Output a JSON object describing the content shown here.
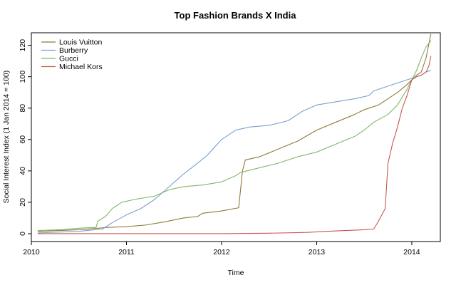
{
  "chart_data": {
    "type": "line",
    "title": "Top Fashion Brands X India",
    "xlabel": "Time",
    "ylabel": "Social Interest Index (1 Jan 2014 = 100)",
    "xlim": [
      2010.0,
      2014.3
    ],
    "ylim": [
      -5,
      128
    ],
    "x_ticks": [
      2010,
      2011,
      2012,
      2013,
      2014
    ],
    "x_tick_labels": [
      "2010",
      "2011",
      "2012",
      "2013",
      "2014"
    ],
    "y_ticks": [
      0,
      20,
      40,
      60,
      80,
      100,
      120
    ],
    "y_tick_labels": [
      "0",
      "20",
      "40",
      "60",
      "80",
      "100",
      "120"
    ],
    "legend_position": "top-left",
    "series": [
      {
        "name": "Louis Vuitton",
        "color": "#8c7a3a",
        "points": [
          [
            2010.07,
            1.5
          ],
          [
            2010.5,
            2.5
          ],
          [
            2010.8,
            4
          ],
          [
            2011.0,
            4.5
          ],
          [
            2011.2,
            5.5
          ],
          [
            2011.4,
            7.5
          ],
          [
            2011.6,
            10
          ],
          [
            2011.75,
            11
          ],
          [
            2011.8,
            13
          ],
          [
            2012.0,
            14.5
          ],
          [
            2012.18,
            16.5
          ],
          [
            2012.22,
            40
          ],
          [
            2012.25,
            47
          ],
          [
            2012.4,
            49
          ],
          [
            2012.6,
            54
          ],
          [
            2012.8,
            59
          ],
          [
            2013.0,
            66
          ],
          [
            2013.2,
            71
          ],
          [
            2013.4,
            76
          ],
          [
            2013.5,
            79
          ],
          [
            2013.65,
            82
          ],
          [
            2013.75,
            86
          ],
          [
            2013.85,
            90
          ],
          [
            2013.95,
            95
          ],
          [
            2014.05,
            101
          ],
          [
            2014.1,
            103
          ],
          [
            2014.15,
            112
          ],
          [
            2014.2,
            127
          ]
        ]
      },
      {
        "name": "Burberry",
        "color": "#7a9fd0",
        "points": [
          [
            2010.07,
            0.5
          ],
          [
            2010.5,
            1.5
          ],
          [
            2010.75,
            3
          ],
          [
            2010.85,
            7
          ],
          [
            2011.0,
            12
          ],
          [
            2011.15,
            16
          ],
          [
            2011.3,
            22
          ],
          [
            2011.45,
            30
          ],
          [
            2011.6,
            38
          ],
          [
            2011.75,
            45
          ],
          [
            2011.85,
            50
          ],
          [
            2012.0,
            60
          ],
          [
            2012.15,
            66
          ],
          [
            2012.3,
            68
          ],
          [
            2012.5,
            69
          ],
          [
            2012.7,
            72
          ],
          [
            2012.85,
            78
          ],
          [
            2013.0,
            82
          ],
          [
            2013.2,
            84
          ],
          [
            2013.4,
            86
          ],
          [
            2013.55,
            88
          ],
          [
            2013.6,
            91
          ],
          [
            2013.75,
            94
          ],
          [
            2013.9,
            97
          ],
          [
            2014.0,
            99
          ],
          [
            2014.1,
            101
          ],
          [
            2014.15,
            103
          ],
          [
            2014.2,
            104
          ]
        ]
      },
      {
        "name": "Gucci",
        "color": "#7fb86a",
        "points": [
          [
            2010.07,
            2
          ],
          [
            2010.3,
            2.5
          ],
          [
            2010.5,
            3.5
          ],
          [
            2010.68,
            4
          ],
          [
            2010.7,
            8
          ],
          [
            2010.78,
            11
          ],
          [
            2010.85,
            16
          ],
          [
            2010.95,
            20
          ],
          [
            2011.1,
            22
          ],
          [
            2011.3,
            24
          ],
          [
            2011.45,
            28
          ],
          [
            2011.6,
            30
          ],
          [
            2011.8,
            31
          ],
          [
            2012.0,
            33
          ],
          [
            2012.15,
            37
          ],
          [
            2012.2,
            39
          ],
          [
            2012.4,
            42
          ],
          [
            2012.6,
            45
          ],
          [
            2012.8,
            49
          ],
          [
            2013.0,
            52
          ],
          [
            2013.2,
            57
          ],
          [
            2013.4,
            62
          ],
          [
            2013.5,
            66
          ],
          [
            2013.6,
            71
          ],
          [
            2013.75,
            76
          ],
          [
            2013.85,
            82
          ],
          [
            2013.95,
            92
          ],
          [
            2014.05,
            104
          ],
          [
            2014.1,
            112
          ],
          [
            2014.15,
            119
          ],
          [
            2014.2,
            123
          ]
        ]
      },
      {
        "name": "Michael Kors",
        "color": "#c8584a",
        "points": [
          [
            2010.07,
            0
          ],
          [
            2010.5,
            0
          ],
          [
            2011.0,
            0
          ],
          [
            2011.5,
            0
          ],
          [
            2012.0,
            0
          ],
          [
            2012.5,
            0.3
          ],
          [
            2012.9,
            0.8
          ],
          [
            2013.1,
            1.5
          ],
          [
            2013.3,
            2
          ],
          [
            2013.5,
            2.5
          ],
          [
            2013.6,
            3
          ],
          [
            2013.65,
            8
          ],
          [
            2013.72,
            16
          ],
          [
            2013.75,
            45
          ],
          [
            2013.8,
            58
          ],
          [
            2013.85,
            68
          ],
          [
            2013.9,
            80
          ],
          [
            2013.95,
            88
          ],
          [
            2014.0,
            98
          ],
          [
            2014.05,
            100
          ],
          [
            2014.1,
            101
          ],
          [
            2014.15,
            103
          ],
          [
            2014.18,
            107
          ],
          [
            2014.2,
            113
          ]
        ]
      }
    ]
  }
}
